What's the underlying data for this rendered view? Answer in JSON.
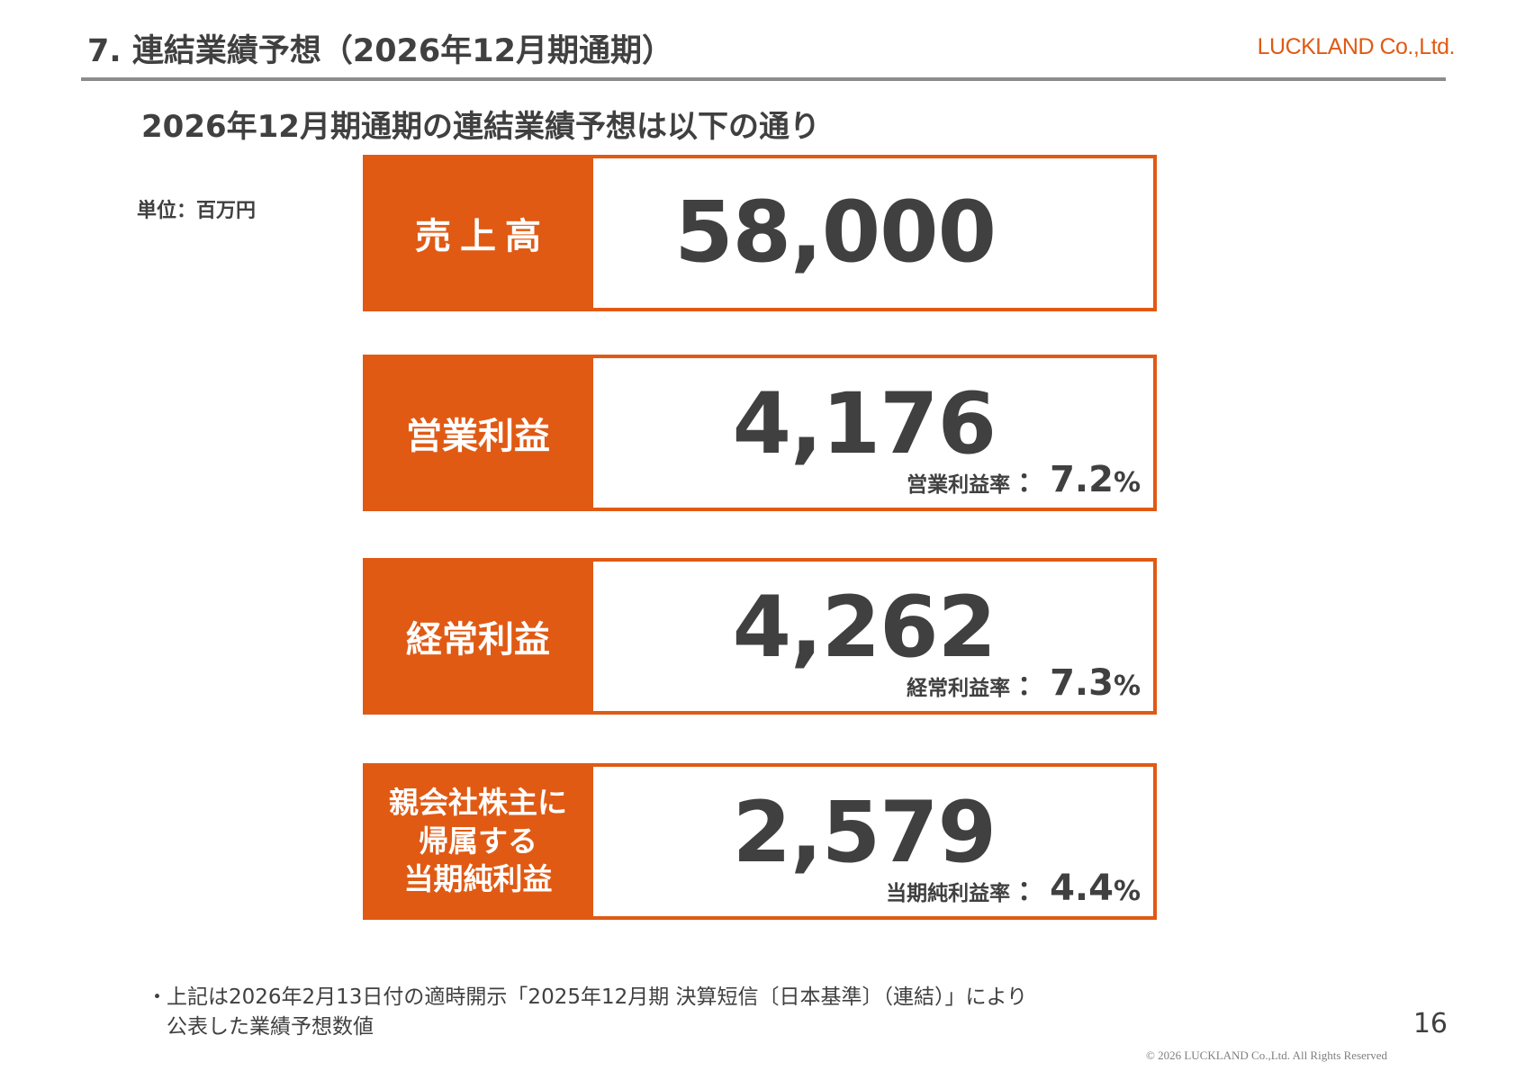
{
  "header": {
    "title": "7. 連結業績予想（2026年12月期通期）",
    "logo": "LUCKLAND Co.,Ltd."
  },
  "subtitle": "2026年12月期通期の連結業績予想は以下の通り",
  "unit_label": "単位：百万円",
  "kpis": [
    {
      "label": "売上高",
      "value": "58,000"
    },
    {
      "label": "営業利益",
      "value": "4,176",
      "ratio_label": "営業利益率",
      "ratio_colon": "：",
      "ratio_value": "7.2",
      "ratio_unit": "%"
    },
    {
      "label": "経常利益",
      "value": "4,262",
      "ratio_label": "経常利益率",
      "ratio_colon": "：",
      "ratio_value": "7.3",
      "ratio_unit": "%"
    },
    {
      "label": "親会社株主に\n帰属する\n当期純利益",
      "value": "2,579",
      "ratio_label": "当期純利益率",
      "ratio_colon": "：",
      "ratio_value": "4.4",
      "ratio_unit": "%"
    }
  ],
  "footnote": {
    "bullet": "・",
    "text": "上記は2026年2月13日付の適時開示「2025年12月期 決算短信〔日本基準〕（連結）」により\n公表した業績予想数値"
  },
  "page_number": "16",
  "copyright": "© 2026 LUCKLAND Co.,Ltd. All Rights Reserved",
  "colors": {
    "accent": "#e05a14",
    "text": "#404040",
    "rule": "#8c8c8c"
  }
}
